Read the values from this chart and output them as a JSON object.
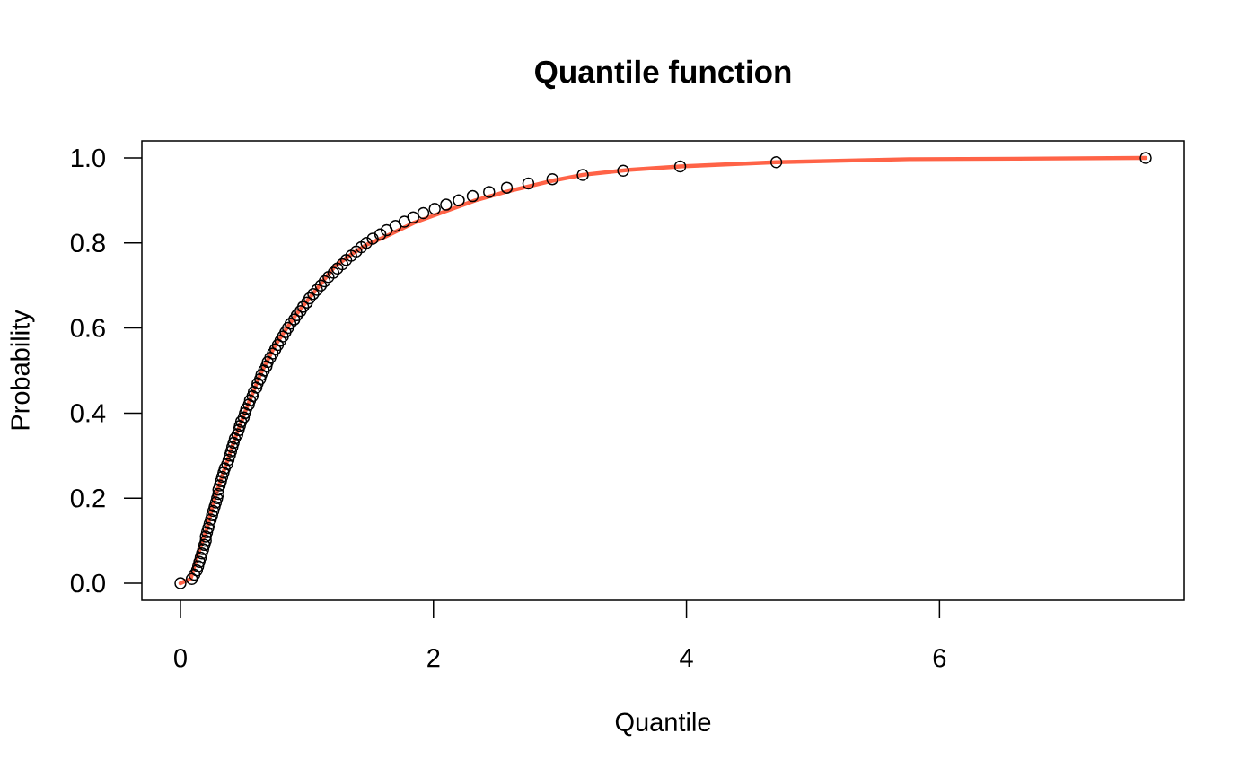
{
  "chart_data": {
    "type": "scatter",
    "title": "Quantile function",
    "xlabel": "Quantile",
    "ylabel": "Probability",
    "xlim": [
      -0.305,
      7.935
    ],
    "ylim": [
      -0.04,
      1.04
    ],
    "xticks": [
      0,
      2,
      4,
      6
    ],
    "yticks": [
      {
        "value": 0,
        "label": "0.0"
      },
      0.2,
      0.4,
      0.6,
      0.8,
      {
        "value": 1,
        "label": "1.0"
      }
    ],
    "series": [
      {
        "color": "#000000",
        "marker": "circle",
        "x": [
          0,
          0.09,
          0.11,
          0.13,
          0.14,
          0.15,
          0.16,
          0.17,
          0.18,
          0.19,
          0.2,
          0.2,
          0.21,
          0.22,
          0.23,
          0.24,
          0.25,
          0.26,
          0.27,
          0.28,
          0.29,
          0.3,
          0.3,
          0.31,
          0.32,
          0.33,
          0.34,
          0.35,
          0.37,
          0.38,
          0.39,
          0.4,
          0.41,
          0.42,
          0.43,
          0.45,
          0.46,
          0.47,
          0.48,
          0.5,
          0.51,
          0.52,
          0.54,
          0.55,
          0.57,
          0.58,
          0.6,
          0.61,
          0.63,
          0.64,
          0.66,
          0.68,
          0.69,
          0.71,
          0.73,
          0.75,
          0.77,
          0.79,
          0.81,
          0.83,
          0.85,
          0.87,
          0.9,
          0.92,
          0.95,
          0.97,
          1.0,
          1.02,
          1.05,
          1.08,
          1.11,
          1.14,
          1.17,
          1.21,
          1.24,
          1.28,
          1.31,
          1.35,
          1.39,
          1.43,
          1.47,
          1.52,
          1.58,
          1.63,
          1.7,
          1.77,
          1.84,
          1.92,
          2.01,
          2.1,
          2.2,
          2.31,
          2.44,
          2.58,
          2.75,
          2.94,
          3.18,
          3.5,
          3.95,
          4.71,
          7.63
        ],
        "values": [
          0,
          0.01,
          0.02,
          0.03,
          0.04,
          0.05,
          0.06,
          0.07,
          0.08,
          0.09,
          0.1,
          0.11,
          0.12,
          0.13,
          0.14,
          0.15,
          0.16,
          0.17,
          0.18,
          0.19,
          0.2,
          0.21,
          0.22,
          0.23,
          0.24,
          0.25,
          0.26,
          0.27,
          0.28,
          0.29,
          0.3,
          0.31,
          0.32,
          0.33,
          0.34,
          0.35,
          0.36,
          0.37,
          0.38,
          0.39,
          0.4,
          0.41,
          0.42,
          0.43,
          0.44,
          0.45,
          0.46,
          0.47,
          0.48,
          0.49,
          0.5,
          0.51,
          0.52,
          0.53,
          0.54,
          0.55,
          0.56,
          0.57,
          0.58,
          0.59,
          0.6,
          0.61,
          0.62,
          0.63,
          0.64,
          0.65,
          0.66,
          0.67,
          0.68,
          0.69,
          0.7,
          0.71,
          0.72,
          0.73,
          0.74,
          0.75,
          0.76,
          0.77,
          0.78,
          0.79,
          0.8,
          0.81,
          0.82,
          0.83,
          0.84,
          0.85,
          0.86,
          0.87,
          0.88,
          0.89,
          0.9,
          0.91,
          0.92,
          0.93,
          0.94,
          0.95,
          0.96,
          0.97,
          0.98,
          0.99,
          1
        ]
      },
      {
        "type": "line",
        "color": "#ff6347",
        "line_style": "solid",
        "x": [
          0,
          0.08,
          0.13,
          0.21,
          0.27,
          0.35,
          0.43,
          0.52,
          0.63,
          0.75,
          0.91,
          1.1,
          1.22,
          1.36,
          1.48,
          1.62,
          1.85,
          2.1,
          2.33,
          2.57,
          2.92,
          3.18,
          3.55,
          3.95,
          4.71,
          5.76,
          6.6,
          7.63
        ],
        "values": [
          0,
          0.01,
          0.06,
          0.13,
          0.2,
          0.27,
          0.34,
          0.41,
          0.49,
          0.56,
          0.63,
          0.7,
          0.745,
          0.775,
          0.797,
          0.815,
          0.848,
          0.875,
          0.9,
          0.92,
          0.945,
          0.96,
          0.972,
          0.98,
          0.99,
          0.997,
          0.998,
          1
        ]
      }
    ]
  }
}
